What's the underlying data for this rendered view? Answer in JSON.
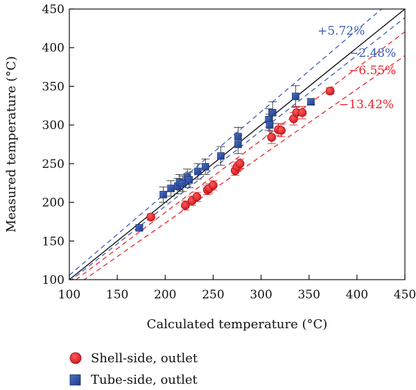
{
  "chart_data": {
    "type": "scatter",
    "title": "",
    "xlabel": "Calculated temperature (°C)",
    "ylabel": "Measured temperature (°C)",
    "xlim": [
      100,
      450
    ],
    "ylim": [
      100,
      450
    ],
    "xticks": [
      100,
      150,
      200,
      250,
      300,
      350,
      400,
      450
    ],
    "yticks": [
      100,
      150,
      200,
      250,
      300,
      350,
      400,
      450
    ],
    "grid": false,
    "legend_position": "bottom-left outside",
    "colors": {
      "shell": "#e8242b",
      "tube": "#2d4fa0",
      "reference_line": "#111111",
      "blue_dashed": "#3b5cb3",
      "red_dashed": "#e8242b"
    },
    "reference_lines": [
      {
        "label": "",
        "slope": 1.0,
        "style": "solid",
        "color": "#111111"
      },
      {
        "label": "+5.72%",
        "slope": 1.0572,
        "style": "dashed",
        "color": "#3b5cb3"
      },
      {
        "label": "−2.48%",
        "slope": 0.9752,
        "style": "dashed",
        "color": "#3b5cb3"
      },
      {
        "label": "−6.55%",
        "slope": 0.9345,
        "style": "dashed",
        "color": "#e8242b"
      },
      {
        "label": "−13.42%",
        "slope": 0.8658,
        "style": "dashed",
        "color": "#e8242b"
      }
    ],
    "series": [
      {
        "name": "Shell-side, outlet",
        "marker": "circle",
        "color": "#e8242b",
        "points": [
          {
            "x": 185,
            "y": 181,
            "err": 4
          },
          {
            "x": 221,
            "y": 196,
            "err": 6
          },
          {
            "x": 228,
            "y": 202,
            "err": 6
          },
          {
            "x": 233,
            "y": 207,
            "err": 6
          },
          {
            "x": 244,
            "y": 216,
            "err": 6
          },
          {
            "x": 246,
            "y": 218,
            "err": 6
          },
          {
            "x": 250,
            "y": 222,
            "err": 6
          },
          {
            "x": 273,
            "y": 241,
            "err": 6
          },
          {
            "x": 275,
            "y": 246,
            "err": 6
          },
          {
            "x": 278,
            "y": 250,
            "err": 6
          },
          {
            "x": 311,
            "y": 284,
            "err": 8
          },
          {
            "x": 318,
            "y": 294,
            "err": 8
          },
          {
            "x": 321,
            "y": 293,
            "err": 8
          },
          {
            "x": 334,
            "y": 308,
            "err": 8
          },
          {
            "x": 337,
            "y": 316,
            "err": 8
          },
          {
            "x": 343,
            "y": 316,
            "err": 8
          },
          {
            "x": 372,
            "y": 344,
            "err": 4
          }
        ]
      },
      {
        "name": "Tube-side, outlet",
        "marker": "square",
        "color": "#2d4fa0",
        "points": [
          {
            "x": 173,
            "y": 167,
            "err": 3
          },
          {
            "x": 198,
            "y": 210,
            "err": 10
          },
          {
            "x": 206,
            "y": 218,
            "err": 10
          },
          {
            "x": 213,
            "y": 221,
            "err": 10
          },
          {
            "x": 215,
            "y": 226,
            "err": 10
          },
          {
            "x": 218,
            "y": 224,
            "err": 10
          },
          {
            "x": 223,
            "y": 233,
            "err": 10
          },
          {
            "x": 225,
            "y": 229,
            "err": 10
          },
          {
            "x": 234,
            "y": 240,
            "err": 10
          },
          {
            "x": 242,
            "y": 246,
            "err": 10
          },
          {
            "x": 258,
            "y": 260,
            "err": 12
          },
          {
            "x": 276,
            "y": 275,
            "err": 12
          },
          {
            "x": 276,
            "y": 285,
            "err": 12
          },
          {
            "x": 308,
            "y": 307,
            "err": 14
          },
          {
            "x": 309,
            "y": 300,
            "err": 14
          },
          {
            "x": 312,
            "y": 316,
            "err": 14
          },
          {
            "x": 336,
            "y": 337,
            "err": 14
          },
          {
            "x": 352,
            "y": 330,
            "err": 4
          }
        ]
      }
    ]
  }
}
